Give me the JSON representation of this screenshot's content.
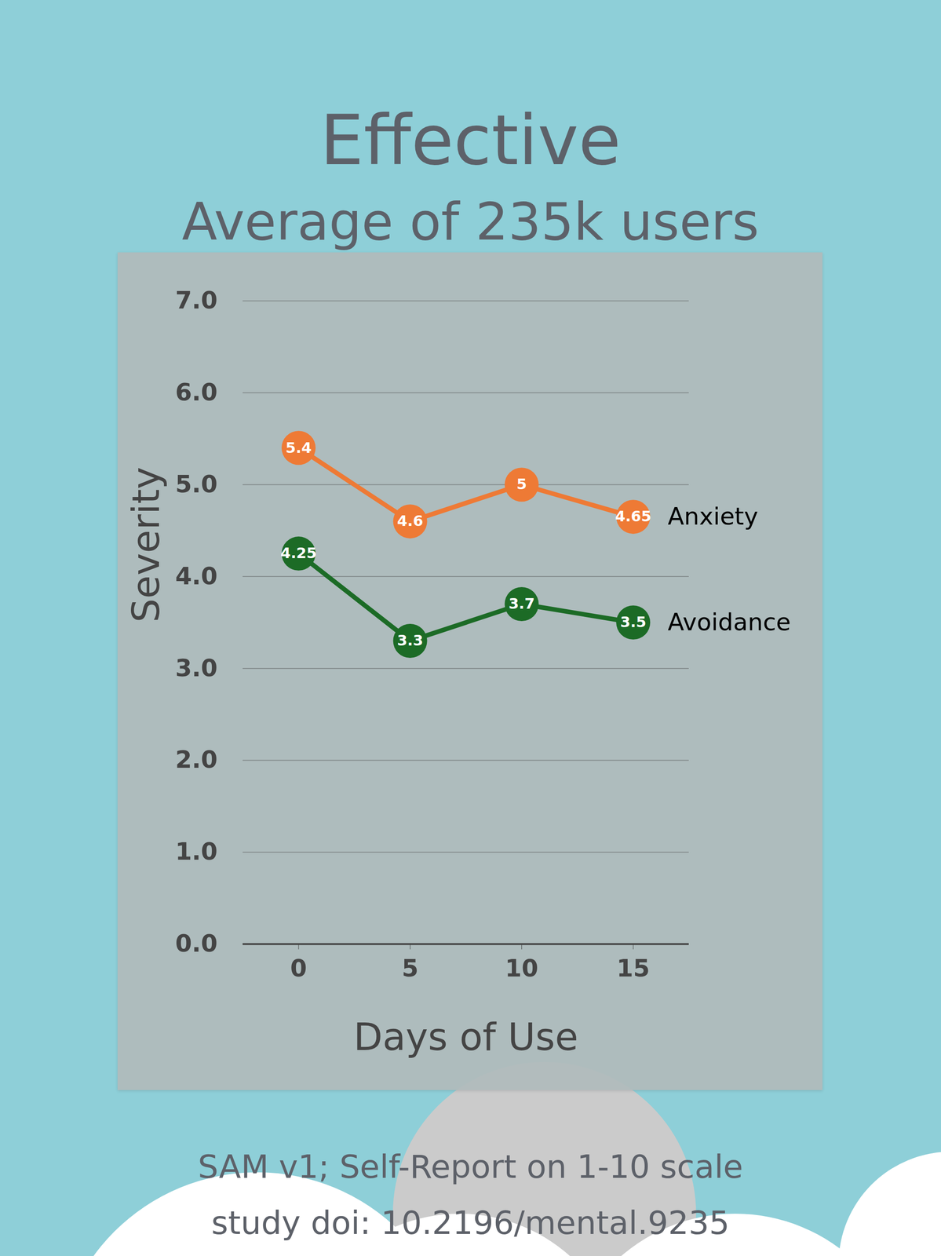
{
  "chart_data": {
    "type": "line",
    "title": "Effective",
    "subtitle": "Average of 235k users",
    "caption": [
      "SAM v1; Self-Report on 1-10 scale",
      "study doi: 10.2196/mental.9235"
    ],
    "x_label": "Days of Use",
    "y_label": "Severity",
    "x": [
      0,
      5,
      10,
      15
    ],
    "series": [
      {
        "name": "Anxiety",
        "color": "#ee7a35",
        "values": [
          5.4,
          4.6,
          5,
          4.65
        ]
      },
      {
        "name": "Avoidance",
        "color": "#1c6b26",
        "values": [
          4.25,
          3.3,
          3.7,
          3.5
        ]
      }
    ],
    "xlim": [
      -2.5,
      17.5
    ],
    "xticks": [
      0,
      5,
      10,
      15
    ],
    "ylim": [
      0,
      7
    ],
    "yticks": [
      0,
      1,
      2,
      3,
      4,
      5,
      6,
      7
    ],
    "grid": true,
    "data_labels": true,
    "marker": "circle"
  }
}
